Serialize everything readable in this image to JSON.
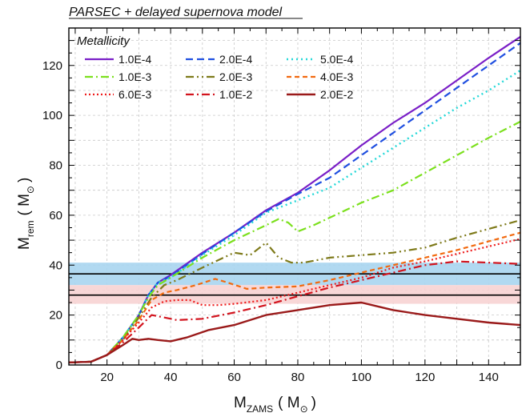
{
  "chart_data": {
    "type": "line",
    "title": "PARSEC + delayed supernova model",
    "xlabel": {
      "main": "M",
      "sub": "ZAMS",
      "unit": "( M",
      "unit_sub": "⊙",
      "close": ")"
    },
    "ylabel": {
      "main": "M",
      "sub": "rem",
      "unit": "( M",
      "unit_sub": "⊙",
      "close": ")"
    },
    "xlim": [
      8,
      150
    ],
    "ylim": [
      0,
      135
    ],
    "xticks": [
      20,
      40,
      60,
      80,
      100,
      120,
      140
    ],
    "yticks": [
      0,
      20,
      40,
      60,
      80,
      100,
      120
    ],
    "grid": true,
    "legend": {
      "title": "Metallicity",
      "placement": "top-left"
    },
    "bands": [
      {
        "y0": 32.0,
        "y1": 41.0,
        "color": "#a9d5ef",
        "line": 36.5
      },
      {
        "y0": 24.5,
        "y1": 32.0,
        "color": "#f7d3d3",
        "line": 28.0
      }
    ],
    "series": [
      {
        "name": "1.0E-4",
        "color": "#7a1fc7",
        "dash": "",
        "width": 2.2,
        "points": [
          [
            8,
            1
          ],
          [
            15,
            1.3
          ],
          [
            20,
            4
          ],
          [
            25,
            11
          ],
          [
            30,
            20
          ],
          [
            33,
            28
          ],
          [
            36,
            33
          ],
          [
            40,
            36
          ],
          [
            50,
            45
          ],
          [
            60,
            53
          ],
          [
            70,
            62
          ],
          [
            80,
            69
          ],
          [
            90,
            78
          ],
          [
            100,
            88
          ],
          [
            110,
            97
          ],
          [
            120,
            105
          ],
          [
            130,
            114
          ],
          [
            140,
            123
          ],
          [
            150,
            131.5
          ]
        ]
      },
      {
        "name": "2.0E-4",
        "color": "#1f4fe0",
        "dash": "9,5",
        "width": 2.2,
        "points": [
          [
            8,
            1
          ],
          [
            15,
            1.3
          ],
          [
            20,
            4
          ],
          [
            25,
            11
          ],
          [
            30,
            20
          ],
          [
            33,
            28
          ],
          [
            36,
            33
          ],
          [
            40,
            35.5
          ],
          [
            50,
            44.5
          ],
          [
            60,
            53
          ],
          [
            70,
            61.5
          ],
          [
            80,
            68.5
          ],
          [
            90,
            75
          ],
          [
            100,
            84
          ],
          [
            110,
            93
          ],
          [
            120,
            102
          ],
          [
            130,
            111
          ],
          [
            140,
            120
          ],
          [
            150,
            129
          ]
        ]
      },
      {
        "name": "5.0E-4",
        "color": "#23d8d8",
        "dash": "2,4",
        "width": 2.4,
        "points": [
          [
            8,
            1
          ],
          [
            15,
            1.3
          ],
          [
            20,
            4
          ],
          [
            25,
            11
          ],
          [
            30,
            20
          ],
          [
            33,
            28
          ],
          [
            36,
            33
          ],
          [
            40,
            35
          ],
          [
            50,
            44
          ],
          [
            60,
            52
          ],
          [
            70,
            61
          ],
          [
            80,
            66
          ],
          [
            90,
            71
          ],
          [
            100,
            79
          ],
          [
            110,
            87
          ],
          [
            120,
            95
          ],
          [
            130,
            103
          ],
          [
            140,
            110
          ],
          [
            150,
            118
          ]
        ]
      },
      {
        "name": "1.0E-3",
        "color": "#7ce01e",
        "dash": "10,4,2,4",
        "width": 2.2,
        "points": [
          [
            8,
            1
          ],
          [
            15,
            1.3
          ],
          [
            20,
            4
          ],
          [
            25,
            11
          ],
          [
            30,
            20
          ],
          [
            33,
            27
          ],
          [
            36,
            32
          ],
          [
            40,
            35
          ],
          [
            50,
            43
          ],
          [
            60,
            50
          ],
          [
            70,
            56
          ],
          [
            74,
            58.5
          ],
          [
            77,
            57
          ],
          [
            80,
            53.5
          ],
          [
            85,
            56
          ],
          [
            90,
            59
          ],
          [
            100,
            65
          ],
          [
            110,
            70
          ],
          [
            120,
            77
          ],
          [
            130,
            84
          ],
          [
            140,
            91
          ],
          [
            150,
            97.5
          ]
        ]
      },
      {
        "name": "2.0E-3",
        "color": "#7e7a1a",
        "dash": "10,4,2,4,2,4",
        "width": 2.2,
        "points": [
          [
            8,
            1
          ],
          [
            15,
            1.3
          ],
          [
            20,
            4
          ],
          [
            25,
            10
          ],
          [
            30,
            19
          ],
          [
            34,
            27
          ],
          [
            38,
            32
          ],
          [
            42,
            34
          ],
          [
            50,
            39
          ],
          [
            60,
            45
          ],
          [
            65,
            44
          ],
          [
            70,
            49
          ],
          [
            74,
            43
          ],
          [
            78,
            41
          ],
          [
            82,
            41
          ],
          [
            90,
            43
          ],
          [
            100,
            44
          ],
          [
            110,
            45
          ],
          [
            120,
            47
          ],
          [
            130,
            51
          ],
          [
            140,
            54.5
          ],
          [
            150,
            58
          ]
        ]
      },
      {
        "name": "4.0E-3",
        "color": "#f26a10",
        "dash": "6,4",
        "width": 2.2,
        "points": [
          [
            8,
            1
          ],
          [
            15,
            1.3
          ],
          [
            20,
            4
          ],
          [
            25,
            10
          ],
          [
            30,
            18
          ],
          [
            34,
            26
          ],
          [
            38,
            29
          ],
          [
            42,
            30
          ],
          [
            48,
            32
          ],
          [
            54,
            34.5
          ],
          [
            58,
            33
          ],
          [
            64,
            30.5
          ],
          [
            70,
            31
          ],
          [
            80,
            31.5
          ],
          [
            90,
            34
          ],
          [
            100,
            37
          ],
          [
            110,
            40
          ],
          [
            120,
            43
          ],
          [
            130,
            46
          ],
          [
            140,
            49.5
          ],
          [
            150,
            53
          ]
        ]
      },
      {
        "name": "6.0E-3",
        "color": "#ee1c1c",
        "dash": "2,3",
        "width": 2.2,
        "points": [
          [
            8,
            1
          ],
          [
            15,
            1.3
          ],
          [
            20,
            4
          ],
          [
            25,
            10
          ],
          [
            30,
            17
          ],
          [
            34,
            23
          ],
          [
            38,
            25.5
          ],
          [
            42,
            26
          ],
          [
            46,
            26
          ],
          [
            50,
            24
          ],
          [
            55,
            24
          ],
          [
            60,
            24.5
          ],
          [
            70,
            26
          ],
          [
            80,
            29
          ],
          [
            90,
            32
          ],
          [
            100,
            35
          ],
          [
            110,
            39
          ],
          [
            120,
            41.5
          ],
          [
            130,
            44.5
          ],
          [
            140,
            47.5
          ],
          [
            150,
            50.5
          ]
        ]
      },
      {
        "name": "1.0E-2",
        "color": "#d2141e",
        "dash": "10,4,2,4",
        "width": 2.2,
        "points": [
          [
            8,
            1
          ],
          [
            15,
            1.3
          ],
          [
            20,
            4
          ],
          [
            25,
            9
          ],
          [
            30,
            15
          ],
          [
            34,
            20
          ],
          [
            38,
            19
          ],
          [
            42,
            18
          ],
          [
            50,
            18.5
          ],
          [
            60,
            21
          ],
          [
            70,
            24
          ],
          [
            80,
            27.5
          ],
          [
            90,
            31
          ],
          [
            100,
            34
          ],
          [
            110,
            37
          ],
          [
            120,
            40
          ],
          [
            130,
            41.5
          ],
          [
            140,
            41
          ],
          [
            150,
            40.5
          ]
        ]
      },
      {
        "name": "2.0E-2",
        "color": "#9a1a1a",
        "dash": "",
        "width": 2.4,
        "points": [
          [
            8,
            1
          ],
          [
            15,
            1.3
          ],
          [
            20,
            4
          ],
          [
            25,
            8
          ],
          [
            28,
            10.5
          ],
          [
            30,
            10
          ],
          [
            33,
            10.5
          ],
          [
            36,
            10
          ],
          [
            40,
            9.5
          ],
          [
            45,
            11
          ],
          [
            52,
            14
          ],
          [
            60,
            16
          ],
          [
            70,
            20
          ],
          [
            80,
            22
          ],
          [
            90,
            24
          ],
          [
            100,
            25
          ],
          [
            110,
            22
          ],
          [
            120,
            20
          ],
          [
            130,
            18.5
          ],
          [
            140,
            17
          ],
          [
            150,
            16
          ]
        ]
      }
    ]
  }
}
